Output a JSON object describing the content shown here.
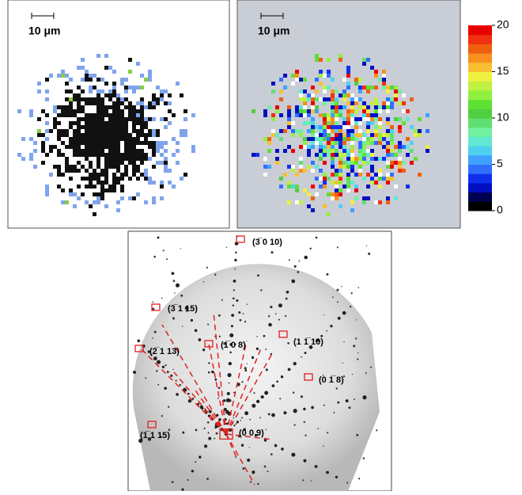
{
  "panels": {
    "left": {
      "scale_bar": "10 μm"
    },
    "right": {
      "scale_bar": "10 μm"
    }
  },
  "colorbar": {
    "lim": [
      0,
      20
    ],
    "ticks": [
      0,
      5,
      10,
      15,
      20
    ],
    "colors": [
      "#000000",
      "#000050",
      "#0010c0",
      "#1030f0",
      "#3070ff",
      "#40a0ff",
      "#50d0f0",
      "#60e8d0",
      "#70f0a0",
      "#60e070",
      "#50d040",
      "#60e030",
      "#90f040",
      "#c0f040",
      "#f0f040",
      "#f8c030",
      "#f89020",
      "#f06010",
      "#f03010",
      "#e80000"
    ]
  },
  "laue": {
    "labels": [
      "(3̅ 0 10)",
      "(3̅ 1 15)",
      "(1̅ 0 8)",
      "(1 1̅ 10)",
      "(2̅ 1 13)",
      "(0 1̅ 8)",
      "(1̅ 1 15)",
      "(0 0 9)"
    ]
  }
}
